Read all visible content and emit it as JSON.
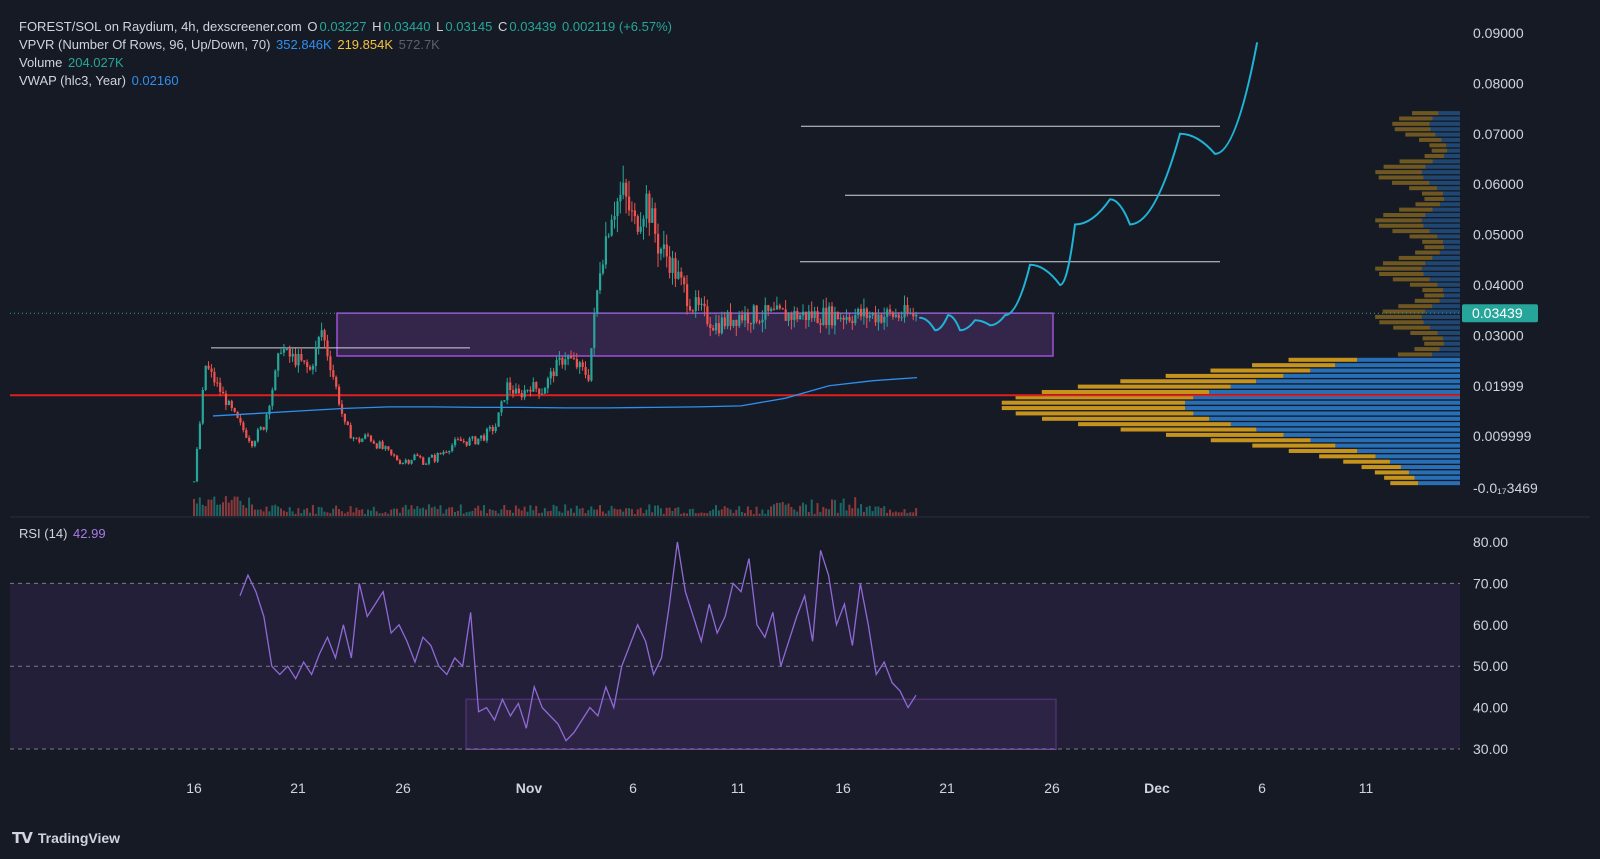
{
  "legend": {
    "title": "FOREST/SOL on Raydium, 4h, dexscreener.com",
    "o_key": "O",
    "o_val": "0.03227",
    "h_key": "H",
    "h_val": "0.03440",
    "l_key": "L",
    "l_val": "0.03145",
    "c_key": "C",
    "c_val": "0.03439",
    "change": "0.002119 (+6.57%)",
    "vpvr_label": "VPVR (Number Of Rows, 96, Up/Down, 70)",
    "vpvr_up": "352.846K",
    "vpvr_down": "219.854K",
    "vpvr_total": "572.7K",
    "volume_label": "Volume",
    "volume_val": "204.027K",
    "vwap_label": "VWAP (hlc3, Year)",
    "vwap_val": "0.02160",
    "rsi_label": "RSI (14)",
    "rsi_val": "42.99"
  },
  "price_axis": {
    "ticks": [
      "0.09000",
      "0.08000",
      "0.07000",
      "0.06000",
      "0.05000",
      "0.04000",
      "0.03000",
      "0.01999",
      "0.009999",
      "-0.0₁₇3469"
    ],
    "current_price": "0.03439"
  },
  "rsi_axis": {
    "ticks": [
      "80.00",
      "70.00",
      "60.00",
      "50.00",
      "40.00",
      "30.00"
    ]
  },
  "time_axis": {
    "ticks": [
      "16",
      "21",
      "26",
      "Nov",
      "6",
      "11",
      "16",
      "21",
      "26",
      "Dec",
      "6",
      "11"
    ]
  },
  "brand": {
    "name": "TradingView",
    "logo": "TV"
  },
  "colors": {
    "bg": "#161a25",
    "up": "#26a69a",
    "down": "#ef5350",
    "vwap": "#2f8ff0",
    "rsi": "#8f6ad6",
    "zone": "#a14fd8",
    "projection": "#1fb3d6",
    "support": "#e01e1e",
    "vp_up": "#2a7fd1",
    "vp_down": "#d9a21c"
  },
  "chart_data": [
    {
      "type": "candlestick",
      "title": "FOREST/SOL on Raydium, 4h",
      "ylim": [
        -0.01,
        0.092
      ],
      "x_ticks": [
        "16",
        "21",
        "26",
        "Nov",
        "6",
        "11",
        "16",
        "21",
        "26",
        "Dec",
        "6",
        "11"
      ],
      "series": [
        {
          "name": "Price",
          "x_index": [
            0,
            4,
            8,
            12,
            16,
            20,
            24,
            28,
            30,
            32,
            36,
            40,
            44,
            48,
            52,
            56,
            60,
            64,
            68,
            72,
            76,
            80,
            84,
            88,
            92,
            96,
            100,
            104,
            108,
            112,
            116,
            120,
            124,
            128,
            132,
            136,
            140,
            144,
            148,
            152,
            156,
            160,
            164,
            168,
            172,
            176,
            180,
            184,
            188,
            192,
            196,
            200,
            204,
            208,
            212,
            216,
            220,
            224,
            228,
            232,
            236,
            240,
            244,
            248
          ],
          "values": [
            0.001,
            0.024,
            0.02,
            0.016,
            0.012,
            0.009,
            0.012,
            0.022,
            0.028,
            0.026,
            0.025,
            0.023,
            0.031,
            0.022,
            0.012,
            0.009,
            0.01,
            0.008,
            0.006,
            0.005,
            0.006,
            0.005,
            0.006,
            0.008,
            0.009,
            0.009,
            0.01,
            0.012,
            0.02,
            0.018,
            0.02,
            0.019,
            0.023,
            0.026,
            0.024,
            0.022,
            0.044,
            0.055,
            0.058,
            0.052,
            0.057,
            0.048,
            0.045,
            0.04,
            0.036,
            0.034,
            0.032,
            0.033,
            0.034,
            0.034,
            0.034,
            0.034,
            0.034,
            0.034,
            0.034,
            0.034,
            0.034,
            0.034,
            0.034,
            0.034,
            0.034,
            0.034,
            0.034,
            0.034
          ]
        },
        {
          "name": "VWAP (hlc3, Year)",
          "values": [
            0.014,
            0.0145,
            0.015,
            0.0155,
            0.0158,
            0.0158,
            0.0157,
            0.0157,
            0.0156,
            0.0156,
            0.0157,
            0.0158,
            0.016,
            0.0175,
            0.02,
            0.021,
            0.0216
          ]
        }
      ],
      "ohlc_last": {
        "open": 0.03227,
        "high": 0.0344,
        "low": 0.03145,
        "close": 0.03439
      },
      "resistance_levels": [
        0.0715,
        0.0578,
        0.0446,
        0.0275
      ],
      "support_level": 0.0181,
      "zone": {
        "low": 0.0259,
        "high": 0.0344
      },
      "projection_path": [
        0.0335,
        0.031,
        0.034,
        0.031,
        0.033,
        0.032,
        0.034,
        0.044,
        0.04,
        0.052,
        0.057,
        0.052,
        0.07,
        0.066,
        0.088
      ],
      "volume_profile": {
        "up_total": "352.846K",
        "down_total": "219.854K"
      }
    },
    {
      "type": "line",
      "title": "RSI (14)",
      "ylim": [
        25,
        83
      ],
      "bands": [
        30,
        50,
        70
      ],
      "zone": {
        "low": 30,
        "high": 42
      },
      "series": [
        {
          "name": "RSI (14)",
          "values": [
            67,
            72,
            68,
            62,
            50,
            48,
            50,
            47,
            51,
            48,
            53,
            57,
            52,
            60,
            52,
            70,
            62,
            65,
            68,
            58,
            60,
            56,
            51,
            57,
            55,
            50,
            48,
            52,
            50,
            63,
            39,
            40,
            37,
            42,
            38,
            41,
            35,
            45,
            40,
            38,
            36,
            32,
            34,
            37,
            40,
            38,
            45,
            40,
            50,
            55,
            60,
            56,
            48,
            52,
            65,
            80,
            68,
            62,
            56,
            65,
            58,
            62,
            70,
            68,
            76,
            60,
            57,
            63,
            50,
            56,
            62,
            67,
            56,
            78,
            72,
            60,
            65,
            55,
            70,
            60,
            48,
            51,
            46,
            44,
            40,
            43
          ]
        }
      ]
    }
  ]
}
